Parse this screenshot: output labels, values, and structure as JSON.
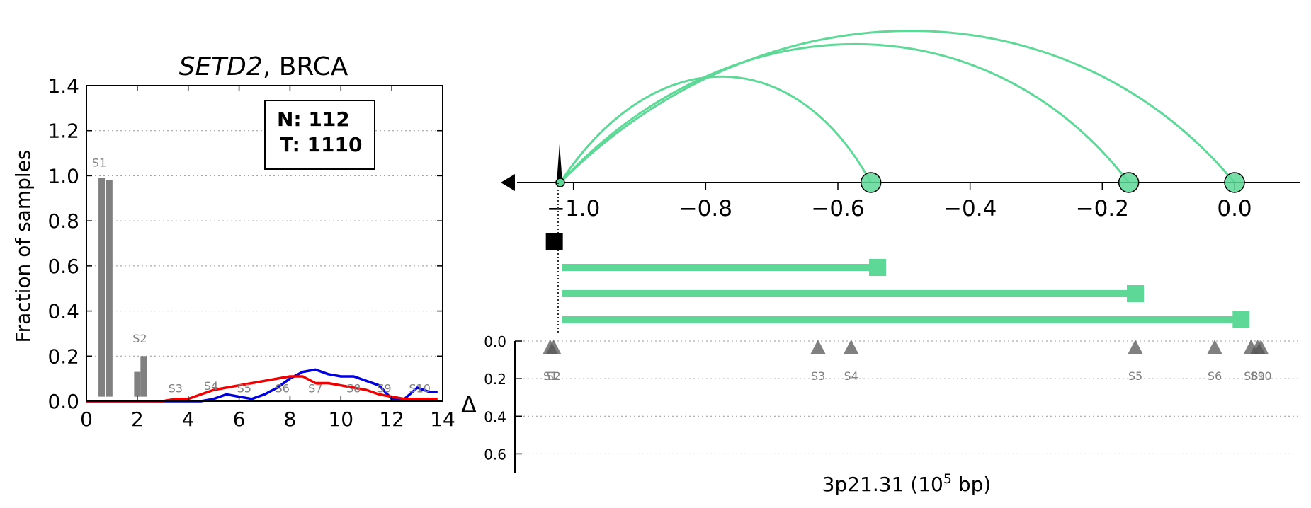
{
  "chart_data": [
    {
      "type": "bar",
      "title_gene": "SETD2",
      "title_rest": ", BRCA",
      "ylabel": "Fraction of samples",
      "xlim": [
        0,
        14
      ],
      "ylim": [
        0,
        1.4
      ],
      "xticks": [
        "0",
        "2",
        "4",
        "6",
        "8",
        "10",
        "12",
        "14"
      ],
      "yticks": [
        "0.0",
        "0.2",
        "0.4",
        "0.6",
        "0.8",
        "1.0",
        "1.2",
        "1.4"
      ],
      "grid": "horizontal dotted",
      "stats": {
        "n": "N: 112",
        "t": "T: 1110"
      },
      "bars": [
        {
          "x": 0.6,
          "value": 0.99
        },
        {
          "x": 0.9,
          "value": 0.98
        },
        {
          "x": 2.0,
          "value": 0.13
        },
        {
          "x": 2.25,
          "value": 0.2
        }
      ],
      "series": [
        {
          "color": "#0000dd",
          "points": [
            [
              0,
              0
            ],
            [
              0.5,
              0
            ],
            [
              1,
              0
            ],
            [
              1.5,
              0
            ],
            [
              2,
              0
            ],
            [
              2.5,
              0
            ],
            [
              3,
              0
            ],
            [
              3.5,
              0
            ],
            [
              4,
              0
            ],
            [
              4.5,
              0
            ],
            [
              5,
              0.01
            ],
            [
              5.5,
              0.03
            ],
            [
              6,
              0.02
            ],
            [
              6.5,
              0.01
            ],
            [
              7,
              0.03
            ],
            [
              7.5,
              0.06
            ],
            [
              8,
              0.1
            ],
            [
              8.5,
              0.13
            ],
            [
              9,
              0.14
            ],
            [
              9.5,
              0.12
            ],
            [
              10,
              0.11
            ],
            [
              10.5,
              0.11
            ],
            [
              11,
              0.09
            ],
            [
              11.5,
              0.07
            ],
            [
              12,
              0.01
            ],
            [
              12.5,
              0.01
            ],
            [
              13,
              0.06
            ],
            [
              13.5,
              0.04
            ],
            [
              13.8,
              0.04
            ]
          ]
        },
        {
          "color": "#ee0000",
          "points": [
            [
              0,
              0
            ],
            [
              0.5,
              0
            ],
            [
              1,
              0
            ],
            [
              1.5,
              0
            ],
            [
              2,
              0
            ],
            [
              2.5,
              0
            ],
            [
              3,
              0
            ],
            [
              3.5,
              0.01
            ],
            [
              4,
              0.01
            ],
            [
              4.5,
              0.03
            ],
            [
              5,
              0.05
            ],
            [
              5.5,
              0.06
            ],
            [
              6,
              0.07
            ],
            [
              6.5,
              0.08
            ],
            [
              7,
              0.09
            ],
            [
              7.5,
              0.1
            ],
            [
              8,
              0.11
            ],
            [
              8.5,
              0.11
            ],
            [
              9,
              0.08
            ],
            [
              9.5,
              0.08
            ],
            [
              10,
              0.07
            ],
            [
              10.5,
              0.06
            ],
            [
              11,
              0.05
            ],
            [
              11.5,
              0.03
            ],
            [
              12,
              0.02
            ],
            [
              12.5,
              0.01
            ],
            [
              13,
              0.01
            ],
            [
              13.5,
              0.01
            ],
            [
              13.8,
              0.01
            ]
          ]
        }
      ],
      "annotations": [
        {
          "text": "S1",
          "x": 0.5,
          "y": 1.04
        },
        {
          "text": "S2",
          "x": 2.1,
          "y": 0.26
        },
        {
          "text": "S3",
          "x": 3.5,
          "y": 0.04
        },
        {
          "text": "S4",
          "x": 4.9,
          "y": 0.05
        },
        {
          "text": "S5",
          "x": 6.2,
          "y": 0.04
        },
        {
          "text": "S6",
          "x": 7.7,
          "y": 0.04
        },
        {
          "text": "S7",
          "x": 9.0,
          "y": 0.04
        },
        {
          "text": "S8",
          "x": 10.5,
          "y": 0.04
        },
        {
          "text": "S9",
          "x": 11.7,
          "y": 0.04
        },
        {
          "text": "S10",
          "x": 13.1,
          "y": 0.04
        }
      ]
    },
    {
      "type": "arc-diagram",
      "xlim": [
        -1.02,
        0.0
      ],
      "xticks": [
        "−1.0",
        "−0.8",
        "−0.6",
        "−0.4",
        "−0.2",
        "0.0"
      ],
      "tick_values": [
        -1.0,
        -0.8,
        -0.6,
        -0.4,
        -0.2,
        0.0
      ],
      "arc_color": "#5dd897",
      "arc_origin": -1.02,
      "arc_targets": [
        -0.55,
        -0.16,
        0.0
      ],
      "segments": [
        {
          "start": -1.02,
          "end": -0.54
        },
        {
          "start": -1.02,
          "end": -0.15
        },
        {
          "start": -1.02,
          "end": 0.01
        }
      ],
      "black_marker": -1.03
    },
    {
      "type": "scatter",
      "xlabel_text": "3p21.31 (10",
      "xlabel_exp": "5",
      "xlabel_tail": " bp)",
      "ylabel": "Δ",
      "ylim": [
        0.0,
        0.7
      ],
      "yticks": [
        "0.0",
        "0.2",
        "0.4",
        "0.6"
      ],
      "grid": "horizontal dotted",
      "points": [
        {
          "label": "S1",
          "x": -1.035
        },
        {
          "label": "S2",
          "x": -1.03
        },
        {
          "label": "S3",
          "x": -0.63
        },
        {
          "label": "S4",
          "x": -0.58
        },
        {
          "label": "S5",
          "x": -0.15
        },
        {
          "label": "S6",
          "x": -0.03
        },
        {
          "label": "S8",
          "x": 0.025
        },
        {
          "label": "S9",
          "x": 0.035
        },
        {
          "label": "S10",
          "x": 0.04
        }
      ]
    }
  ]
}
